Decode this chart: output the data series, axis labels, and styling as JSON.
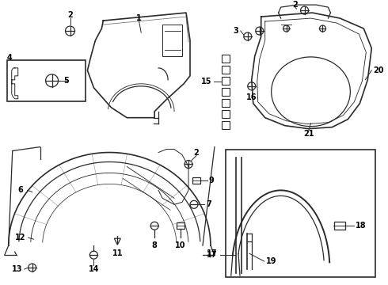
{
  "bg_color": "#ffffff",
  "line_color": "#2a2a2a",
  "label_color": "#000000",
  "fig_w": 4.9,
  "fig_h": 3.6,
  "dpi": 100
}
